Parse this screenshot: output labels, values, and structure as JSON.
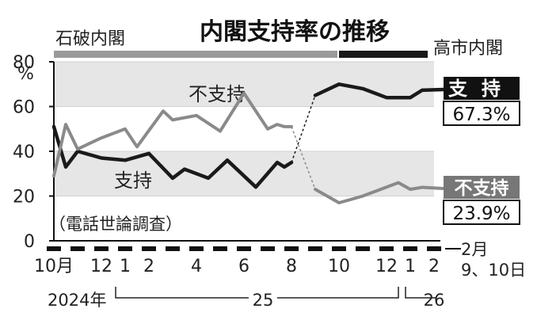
{
  "chart_data": {
    "type": "line",
    "title": "内閣支持率の推移",
    "note": "（電話世論調査）",
    "ylim": [
      0,
      80
    ],
    "y_unit": "%",
    "yticks": [
      "80",
      "60",
      "40",
      "20",
      "0"
    ],
    "cabinets": [
      {
        "name": "石破内閣",
        "from": 0,
        "to": 12
      },
      {
        "name": "高市内閣",
        "from": 12,
        "to": 16
      }
    ],
    "x_tick_labels": [
      {
        "label": "10月",
        "x": 0
      },
      {
        "label": "12",
        "x": 2
      },
      {
        "label": "1",
        "x": 3
      },
      {
        "label": "2",
        "x": 4
      },
      {
        "label": "4",
        "x": 6
      },
      {
        "label": "6",
        "x": 8
      },
      {
        "label": "8",
        "x": 10
      },
      {
        "label": "10",
        "x": 12
      },
      {
        "label": "12",
        "x": 14
      },
      {
        "label": "1",
        "x": 15
      },
      {
        "label": "2",
        "x": 16
      }
    ],
    "year_labels": [
      "2024年",
      "25",
      "26"
    ],
    "end_label": "2月\n9、10日",
    "series": [
      {
        "name": "支持",
        "color": "#1a1a1a",
        "points": [
          [
            0,
            51
          ],
          [
            0.5,
            33
          ],
          [
            1,
            40
          ],
          [
            2,
            37
          ],
          [
            3,
            36
          ],
          [
            4,
            39
          ],
          [
            5,
            28
          ],
          [
            5.5,
            32
          ],
          [
            6.5,
            28
          ],
          [
            7.3,
            36
          ],
          [
            8.5,
            24
          ],
          [
            9.4,
            35
          ],
          [
            9.7,
            33
          ],
          [
            10,
            35
          ],
          [
            11,
            65
          ],
          [
            12,
            70
          ],
          [
            13,
            68
          ],
          [
            14,
            64
          ],
          [
            14.5,
            64
          ],
          [
            15,
            64
          ],
          [
            15.5,
            67.3
          ]
        ],
        "latest": "67.3%"
      },
      {
        "name": "不支持",
        "color": "#8a8a8a",
        "points": [
          [
            0,
            29
          ],
          [
            0.5,
            52
          ],
          [
            1,
            41
          ],
          [
            2,
            46
          ],
          [
            3,
            50
          ],
          [
            3.5,
            42
          ],
          [
            4.6,
            58
          ],
          [
            5,
            54
          ],
          [
            6,
            56
          ],
          [
            7,
            49
          ],
          [
            8,
            66
          ],
          [
            9,
            50
          ],
          [
            9.4,
            52
          ],
          [
            9.7,
            51
          ],
          [
            10,
            51
          ],
          [
            11,
            23
          ],
          [
            12,
            17
          ],
          [
            13,
            20
          ],
          [
            14,
            24
          ],
          [
            14.5,
            26
          ],
          [
            15,
            23
          ],
          [
            15.5,
            23.9
          ]
        ],
        "latest": "23.9%"
      }
    ]
  }
}
